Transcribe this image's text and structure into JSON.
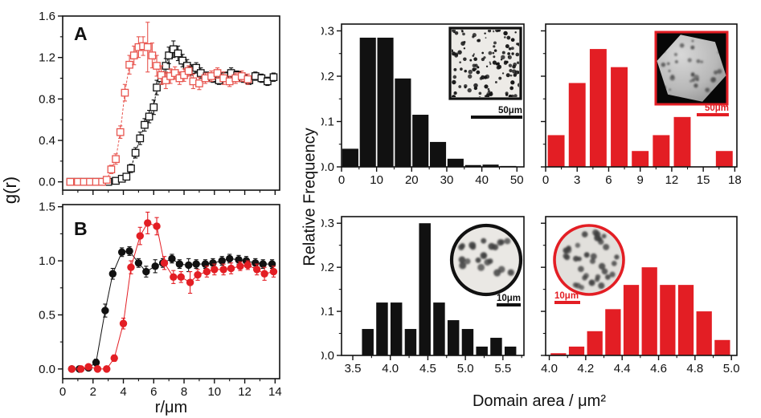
{
  "labels": {
    "gr": "g(r)",
    "r_um": "r/μm",
    "relative_frequency": "Relative Frequency",
    "domain_area": "Domain area / μm²"
  },
  "colors": {
    "black": "#111111",
    "red": "#e31e24",
    "red_light": "#e8554f",
    "inset_light_bg": "#edebe7",
    "inset_dark_bg": "#070707",
    "hexagon_fill": "#b9b9b9"
  },
  "chart_data": [
    {
      "id": "panel_a",
      "type": "scatter",
      "label": "A",
      "xlim": [
        0,
        14.3
      ],
      "ylim": [
        -0.08,
        1.6
      ],
      "xticks": [
        0,
        2,
        4,
        6,
        8,
        10,
        12,
        14
      ],
      "xminor": 1,
      "xtick_labels_visible": false,
      "xtick_decimals": 0,
      "yticks": [
        0.0,
        0.4,
        0.8,
        1.2,
        1.6
      ],
      "yminor": 0.2,
      "ytick_labels_visible": true,
      "ytick_decimals": 1,
      "series": [
        {
          "name": "dilute-phase-black-open-squares",
          "color": "#111111",
          "marker": "open-square",
          "line_dash": "3,2",
          "x": [
            0.5,
            1.0,
            1.5,
            2.0,
            2.5,
            3.0,
            3.5,
            3.9,
            4.2,
            4.5,
            4.8,
            5.1,
            5.4,
            5.7,
            6.0,
            6.2,
            6.5,
            6.8,
            7.0,
            7.3,
            7.6,
            7.9,
            8.2,
            8.5,
            8.8,
            9.1,
            9.5,
            9.9,
            10.3,
            10.7,
            11.1,
            11.5,
            11.9,
            12.3,
            12.7,
            13.1,
            13.5,
            13.9
          ],
          "y": [
            0,
            0,
            0,
            0,
            0,
            0,
            0.01,
            0.03,
            0.05,
            0.13,
            0.28,
            0.42,
            0.55,
            0.63,
            0.72,
            0.91,
            1.0,
            1.12,
            1.22,
            1.28,
            1.24,
            1.17,
            1.12,
            1.08,
            1.1,
            1.05,
            1.02,
            1.0,
            0.98,
            1.02,
            1.05,
            1.03,
            1.0,
            0.98,
            1.02,
            1.0,
            0.97,
            1.01
          ],
          "err": [
            0.01,
            0.01,
            0.01,
            0.01,
            0.01,
            0.01,
            0.02,
            0.02,
            0.03,
            0.04,
            0.05,
            0.06,
            0.06,
            0.06,
            0.07,
            0.07,
            0.06,
            0.07,
            0.08,
            0.08,
            0.07,
            0.06,
            0.06,
            0.05,
            0.05,
            0.05,
            0.04,
            0.04,
            0.04,
            0.04,
            0.05,
            0.04,
            0.04,
            0.04,
            0.04,
            0.04,
            0.04,
            0.04
          ]
        },
        {
          "name": "condensed-phase-red-open-squares",
          "color": "#e8554f",
          "marker": "open-square",
          "line_dash": "3,2",
          "x": [
            0.5,
            1.0,
            1.4,
            1.8,
            2.2,
            2.6,
            2.9,
            3.2,
            3.5,
            3.8,
            4.1,
            4.4,
            4.7,
            5.0,
            5.3,
            5.6,
            5.9,
            6.2,
            6.5,
            6.8,
            7.1,
            7.4,
            7.7,
            8.0,
            8.3,
            8.6,
            9.0,
            9.4,
            9.8,
            10.2,
            10.6,
            11.0,
            11.4,
            11.8,
            12.2
          ],
          "y": [
            0,
            0,
            0,
            0,
            0,
            0,
            0.02,
            0.12,
            0.22,
            0.48,
            0.86,
            1.13,
            1.22,
            1.3,
            1.31,
            1.3,
            1.22,
            1.12,
            1.03,
            0.98,
            1.02,
            1.05,
            1.0,
            1.03,
            1.07,
            0.97,
            0.95,
            1.0,
            1.02,
            1.05,
            1.0,
            0.97,
            1.0,
            1.02,
            0.99
          ],
          "err": [
            0.01,
            0.01,
            0.01,
            0.01,
            0.01,
            0.02,
            0.02,
            0.04,
            0.05,
            0.06,
            0.08,
            0.09,
            0.09,
            0.1,
            0.09,
            0.24,
            0.12,
            0.1,
            0.09,
            0.08,
            0.07,
            0.06,
            0.06,
            0.06,
            0.05,
            0.07,
            0.06,
            0.05,
            0.05,
            0.05,
            0.06,
            0.05,
            0.05,
            0.05,
            0.05
          ]
        }
      ]
    },
    {
      "id": "panel_b",
      "type": "scatter",
      "label": "B",
      "xlabel": "r/μm",
      "xlim": [
        0,
        14.3
      ],
      "ylim": [
        -0.09,
        1.52
      ],
      "xticks": [
        0,
        2,
        4,
        6,
        8,
        10,
        12,
        14
      ],
      "xminor": 1,
      "xtick_labels_visible": true,
      "xtick_decimals": 0,
      "yticks": [
        0.0,
        0.5,
        1.0,
        1.5
      ],
      "yminor": 0.25,
      "ytick_labels_visible": true,
      "ytick_decimals": 1,
      "series": [
        {
          "name": "black-filled-circles",
          "color": "#111111",
          "marker": "filled-circle",
          "line_dash": "",
          "x": [
            0.6,
            1.1,
            1.7,
            2.2,
            2.8,
            3.3,
            3.9,
            4.4,
            5.0,
            5.5,
            6.1,
            6.6,
            7.2,
            7.7,
            8.3,
            8.8,
            9.4,
            9.9,
            10.5,
            11.0,
            11.6,
            12.1,
            12.7,
            13.2,
            13.8
          ],
          "y": [
            0,
            0,
            0.01,
            0.06,
            0.54,
            0.88,
            1.08,
            1.09,
            0.98,
            0.9,
            0.95,
            0.98,
            1.02,
            0.97,
            0.96,
            0.97,
            0.97,
            0.98,
            1.0,
            1.02,
            1.01,
            1.0,
            0.98,
            0.97,
            0.97
          ],
          "err": [
            0.01,
            0.01,
            0.01,
            0.03,
            0.06,
            0.05,
            0.04,
            0.04,
            0.04,
            0.05,
            0.06,
            0.04,
            0.04,
            0.04,
            0.06,
            0.04,
            0.04,
            0.04,
            0.04,
            0.04,
            0.04,
            0.04,
            0.04,
            0.04,
            0.04
          ]
        },
        {
          "name": "red-filled-circles",
          "color": "#e31e24",
          "marker": "filled-circle",
          "line_dash": "",
          "x": [
            0.6,
            1.2,
            1.7,
            2.3,
            2.9,
            3.4,
            4.0,
            4.5,
            5.1,
            5.6,
            6.2,
            6.7,
            7.3,
            7.8,
            8.4,
            8.9,
            9.5,
            10.0,
            10.6,
            11.1,
            11.7,
            12.2,
            12.8,
            13.3,
            13.9
          ],
          "y": [
            0,
            0,
            0.02,
            0.0,
            0.0,
            0.1,
            0.42,
            0.94,
            1.23,
            1.35,
            1.32,
            0.98,
            0.85,
            0.85,
            0.8,
            0.87,
            0.9,
            0.92,
            0.92,
            0.93,
            0.95,
            0.96,
            0.92,
            0.88,
            0.9
          ],
          "err": [
            0.01,
            0.01,
            0.02,
            0.01,
            0.01,
            0.03,
            0.05,
            0.06,
            0.08,
            0.1,
            0.08,
            0.06,
            0.06,
            0.05,
            0.1,
            0.05,
            0.05,
            0.05,
            0.05,
            0.05,
            0.04,
            0.04,
            0.05,
            0.06,
            0.05
          ]
        }
      ]
    },
    {
      "id": "hist_black_large",
      "type": "bar",
      "color": "#111111",
      "xlim": [
        0,
        52
      ],
      "ylim": [
        0,
        0.315
      ],
      "xticks": [
        0,
        10,
        20,
        30,
        40,
        50
      ],
      "xminor": 5,
      "xtick_decimals": 0,
      "yticks": [
        0.0,
        0.1,
        0.2,
        0.3
      ],
      "yminor": 0.05,
      "ytick_labels_visible": true,
      "ytick_decimals": 1,
      "bin_width": 4.6,
      "centers": [
        2.5,
        7.5,
        12.5,
        17.5,
        22.5,
        27.5,
        32.5,
        37.5,
        42.5,
        47.5
      ],
      "heights": [
        0.04,
        0.285,
        0.285,
        0.195,
        0.115,
        0.055,
        0.018,
        0.004,
        0.005,
        0.002
      ],
      "inset": {
        "shape": "square-dots",
        "border_color": "#111111",
        "scale_label": "50μm"
      }
    },
    {
      "id": "hist_red_large",
      "type": "bar",
      "color": "#e31e24",
      "xlim": [
        0,
        18.2
      ],
      "ylim": [
        0,
        0.315
      ],
      "xticks": [
        0,
        3,
        6,
        9,
        12,
        15,
        18
      ],
      "xminor": 1.5,
      "xtick_decimals": 0,
      "yticks": [
        0.0,
        0.1,
        0.2,
        0.3
      ],
      "yminor": 0.05,
      "ytick_labels_visible": false,
      "ytick_decimals": 1,
      "bin_width": 1.6,
      "centers": [
        1,
        3,
        5,
        7,
        9,
        11,
        13,
        17
      ],
      "heights": [
        0.07,
        0.185,
        0.26,
        0.22,
        0.035,
        0.07,
        0.11,
        0.035
      ],
      "inset": {
        "shape": "hexagon",
        "border_color": "#e31e24",
        "scale_label": "50μm"
      }
    },
    {
      "id": "hist_black_small",
      "type": "bar",
      "color": "#111111",
      "xlim": [
        3.35,
        5.78
      ],
      "ylim": [
        0,
        0.315
      ],
      "xticks": [
        3.5,
        4.0,
        4.5,
        5.0,
        5.5
      ],
      "xminor": 0.25,
      "xtick_decimals": 1,
      "yticks": [
        0.0,
        0.1,
        0.2,
        0.3
      ],
      "yminor": 0.05,
      "ytick_labels_visible": true,
      "ytick_decimals": 1,
      "bin_width": 0.155,
      "centers": [
        3.7,
        3.89,
        4.08,
        4.27,
        4.46,
        4.65,
        4.84,
        5.03,
        5.22,
        5.41,
        5.6
      ],
      "heights": [
        0.06,
        0.12,
        0.12,
        0.06,
        0.3,
        0.12,
        0.08,
        0.06,
        0.02,
        0.04,
        0.02
      ],
      "inset": {
        "shape": "circle-dots",
        "border_color": "#111111",
        "scale_label": "10μm",
        "position": "right"
      }
    },
    {
      "id": "hist_red_small",
      "type": "bar",
      "color": "#e31e24",
      "xlim": [
        3.98,
        5.03
      ],
      "ylim": [
        0,
        0.315
      ],
      "xticks": [
        4.0,
        4.2,
        4.4,
        4.6,
        4.8,
        5.0
      ],
      "xminor": 0.1,
      "xtick_decimals": 1,
      "yticks": [
        0.0,
        0.1,
        0.2,
        0.3
      ],
      "yminor": 0.05,
      "ytick_labels_visible": false,
      "ytick_decimals": 1,
      "bin_width": 0.085,
      "centers": [
        4.05,
        4.15,
        4.25,
        4.35,
        4.45,
        4.55,
        4.65,
        4.75,
        4.85,
        4.95
      ],
      "heights": [
        0.005,
        0.02,
        0.055,
        0.105,
        0.16,
        0.2,
        0.16,
        0.16,
        0.1,
        0.035
      ],
      "inset": {
        "shape": "circle-dots",
        "border_color": "#e31e24",
        "scale_label": "10μm",
        "position": "left"
      }
    }
  ]
}
